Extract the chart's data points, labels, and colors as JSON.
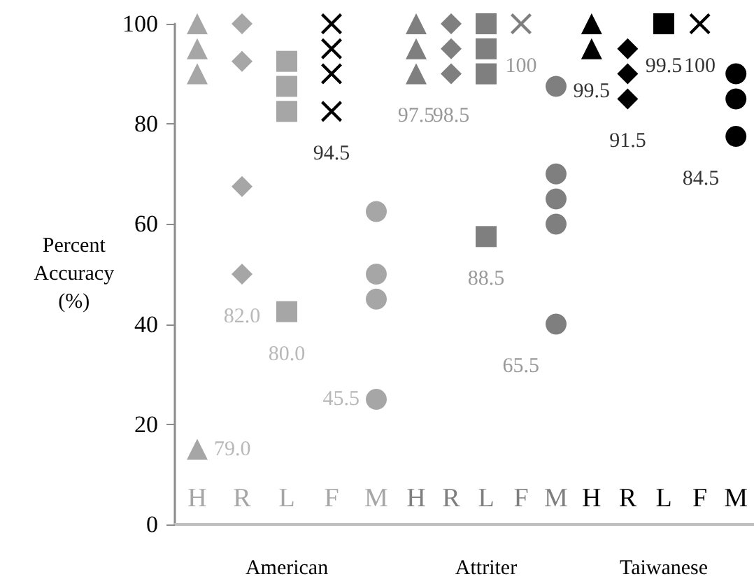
{
  "chart_data": [
    {
      "type": "scatter",
      "xlabel": "American",
      "ylabel": "Percent Accuracy (%)",
      "categories": [
        "H",
        "R",
        "L",
        "F",
        "M"
      ],
      "ylim": [
        0,
        100
      ],
      "yticks": [
        0,
        20,
        40,
        60,
        80,
        100
      ],
      "grid": false,
      "series": [
        {
          "marker": "triangle",
          "color": "#a6a6a6",
          "x": [
            "H",
            "H",
            "H",
            "H"
          ],
          "values": [
            100,
            95,
            90,
            15
          ]
        },
        {
          "marker": "diamond",
          "color": "#a6a6a6",
          "x": [
            "R",
            "R",
            "R",
            "R"
          ],
          "values": [
            100,
            92.5,
            67.5,
            50
          ]
        },
        {
          "marker": "square",
          "color": "#a6a6a6",
          "x": [
            "L",
            "L",
            "L",
            "L"
          ],
          "values": [
            92.5,
            87.5,
            82.5,
            42.5
          ]
        },
        {
          "marker": "cross",
          "color": "#000000",
          "x": [
            "F",
            "F",
            "F",
            "F"
          ],
          "values": [
            100,
            95,
            90,
            82.5
          ]
        },
        {
          "marker": "circle",
          "color": "#a6a6a6",
          "x": [
            "M",
            "M",
            "M",
            "M"
          ],
          "values": [
            62.5,
            50,
            45,
            25
          ]
        }
      ],
      "annotations": [
        "79.0",
        "82.0",
        "80.0",
        "94.5",
        "45.5"
      ]
    },
    {
      "type": "scatter",
      "xlabel": "Attriter",
      "categories": [
        "H",
        "R",
        "L",
        "F",
        "M"
      ],
      "ylim": [
        0,
        100
      ],
      "tick_labels": "x",
      "grid": false,
      "series": [
        {
          "marker": "triangle",
          "color": "#7f7f7f",
          "x": [
            "H",
            "H",
            "H"
          ],
          "values": [
            100,
            95,
            90
          ]
        },
        {
          "marker": "diamond",
          "color": "#7f7f7f",
          "x": [
            "R",
            "R",
            "R"
          ],
          "values": [
            100,
            95,
            90
          ]
        },
        {
          "marker": "square",
          "color": "#7f7f7f",
          "x": [
            "L",
            "L",
            "L",
            "L"
          ],
          "values": [
            100,
            95,
            90,
            57.5
          ]
        },
        {
          "marker": "cross",
          "color": "#7f7f7f",
          "x": [
            "F"
          ],
          "values": [
            100
          ]
        },
        {
          "marker": "circle",
          "color": "#7f7f7f",
          "x": [
            "M",
            "M",
            "M",
            "M",
            "M"
          ],
          "values": [
            87.5,
            70,
            65,
            60,
            40
          ]
        }
      ],
      "annotations": [
        "97.5",
        "98.5",
        "88.5",
        "100",
        "65.5"
      ]
    },
    {
      "type": "scatter",
      "xlabel": "Taiwanese",
      "categories": [
        "H",
        "R",
        "L",
        "F",
        "M"
      ],
      "ylim": [
        0,
        100
      ],
      "tick_labels": "x",
      "grid": false,
      "series": [
        {
          "marker": "triangle",
          "color": "#000000",
          "x": [
            "H",
            "H"
          ],
          "values": [
            100,
            95
          ]
        },
        {
          "marker": "diamond",
          "color": "#000000",
          "x": [
            "R",
            "R",
            "R"
          ],
          "values": [
            95,
            90,
            85
          ]
        },
        {
          "marker": "square",
          "color": "#000000",
          "x": [
            "L"
          ],
          "values": [
            100
          ]
        },
        {
          "marker": "cross",
          "color": "#000000",
          "x": [
            "F"
          ],
          "values": [
            100
          ]
        },
        {
          "marker": "circle",
          "color": "#000000",
          "x": [
            "M",
            "M",
            "M"
          ],
          "values": [
            90,
            85,
            77.5
          ]
        }
      ],
      "annotations": [
        "99.5",
        "91.5",
        "99.5",
        "100",
        "84.5"
      ]
    }
  ]
}
